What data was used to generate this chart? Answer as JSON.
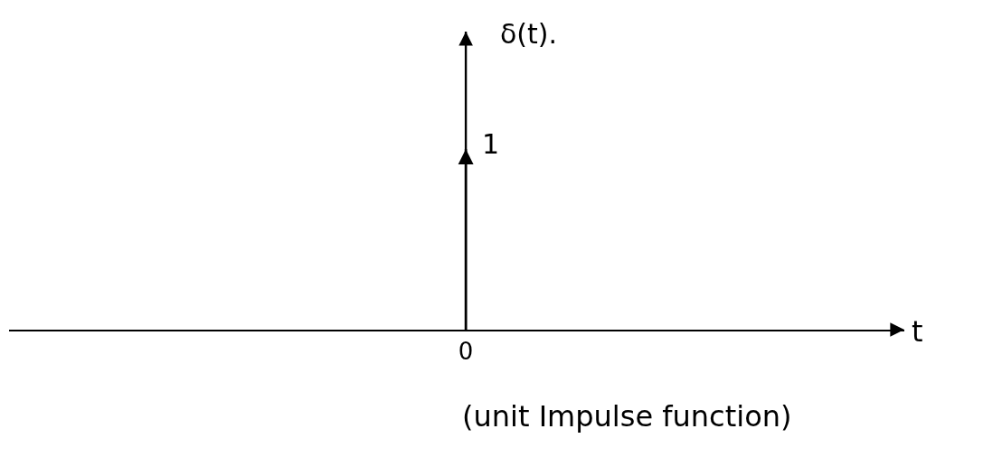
{
  "chart_data": {
    "type": "bar",
    "categories": [
      "0"
    ],
    "values": [
      1
    ],
    "color": "#000000",
    "data_labels": true,
    "tick_labels": "x",
    "ylabel": "δ(t).",
    "annotations": [
      "t",
      "(unit Impulse function)"
    ]
  }
}
